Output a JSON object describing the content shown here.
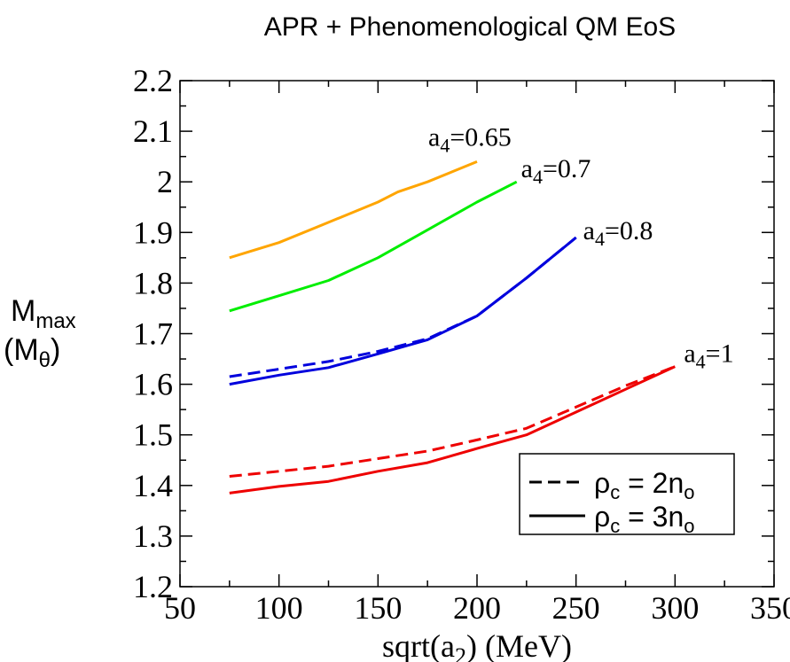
{
  "chart_data": {
    "type": "line",
    "title": "APR + Phenomenological QM EoS",
    "xlabel": {
      "prefix": "sqrt(a",
      "sub": "2",
      "suffix": ")  (MeV)"
    },
    "ylabel": {
      "line1": "M",
      "line1_sub": "max",
      "line2": "(M",
      "line2_sub": "θ",
      "line2_end": ")"
    },
    "xlim": [
      50,
      350
    ],
    "ylim": [
      1.2,
      2.2
    ],
    "xticks": [
      50,
      100,
      150,
      200,
      250,
      300,
      350
    ],
    "yticks": [
      1.2,
      1.3,
      1.4,
      1.5,
      1.6,
      1.7,
      1.8,
      1.9,
      2.0,
      2.1,
      2.2
    ],
    "xtick_labels": [
      "50",
      "100",
      "150",
      "200",
      "250",
      "300",
      "350"
    ],
    "ytick_labels": [
      "1.2",
      "1.3",
      "1.4",
      "1.5",
      "1.6",
      "1.7",
      "1.8",
      "1.9",
      "2",
      "2.1",
      "2.2"
    ],
    "grid": false,
    "legend": {
      "placement": "bottom-right",
      "entries": [
        {
          "style": "dashed",
          "text": "ρ",
          "sub": "c",
          "text2": " = 2n",
          "sub2": "o"
        },
        {
          "style": "solid",
          "text": "ρ",
          "sub": "c",
          "text2": " = 3n",
          "sub2": "o"
        }
      ]
    },
    "series": [
      {
        "label_main": "a",
        "label_sub": "4",
        "label_val": "=0.65",
        "color": "#ffa500",
        "style": "solid",
        "x": [
          75,
          100,
          125,
          150,
          160,
          175,
          200
        ],
        "y": [
          1.85,
          1.88,
          1.92,
          1.96,
          1.98,
          2.0,
          2.04
        ]
      },
      {
        "label_main": "a",
        "label_sub": "4",
        "label_val": "=0.7",
        "color": "#00ee00",
        "style": "solid",
        "x": [
          75,
          100,
          125,
          150,
          175,
          200,
          220
        ],
        "y": [
          1.745,
          1.775,
          1.805,
          1.85,
          1.905,
          1.96,
          2.0
        ]
      },
      {
        "label_main": "a",
        "label_sub": "4",
        "label_val": "=0.8",
        "color": "#0000dd",
        "style": "dashed",
        "x": [
          75,
          100,
          125,
          150,
          175,
          200,
          225,
          250
        ],
        "y": [
          1.615,
          1.63,
          1.645,
          1.665,
          1.69,
          1.735,
          1.81,
          1.89
        ]
      },
      {
        "label_main": "",
        "label_sub": "",
        "label_val": "",
        "color": "#0000dd",
        "style": "solid",
        "x": [
          75,
          100,
          125,
          150,
          175,
          200,
          225,
          250
        ],
        "y": [
          1.6,
          1.618,
          1.633,
          1.66,
          1.688,
          1.735,
          1.81,
          1.89
        ]
      },
      {
        "label_main": "a",
        "label_sub": "4",
        "label_val": "=1",
        "color": "#ee0000",
        "style": "dashed",
        "x": [
          75,
          100,
          125,
          150,
          175,
          200,
          225,
          250,
          275,
          300
        ],
        "y": [
          1.418,
          1.428,
          1.438,
          1.453,
          1.468,
          1.49,
          1.513,
          1.555,
          1.597,
          1.635
        ]
      },
      {
        "label_main": "",
        "label_sub": "",
        "label_val": "",
        "color": "#ee0000",
        "style": "solid",
        "x": [
          75,
          100,
          125,
          150,
          175,
          200,
          225,
          250,
          275,
          300
        ],
        "y": [
          1.385,
          1.398,
          1.408,
          1.428,
          1.445,
          1.473,
          1.5,
          1.545,
          1.59,
          1.635
        ]
      }
    ]
  }
}
